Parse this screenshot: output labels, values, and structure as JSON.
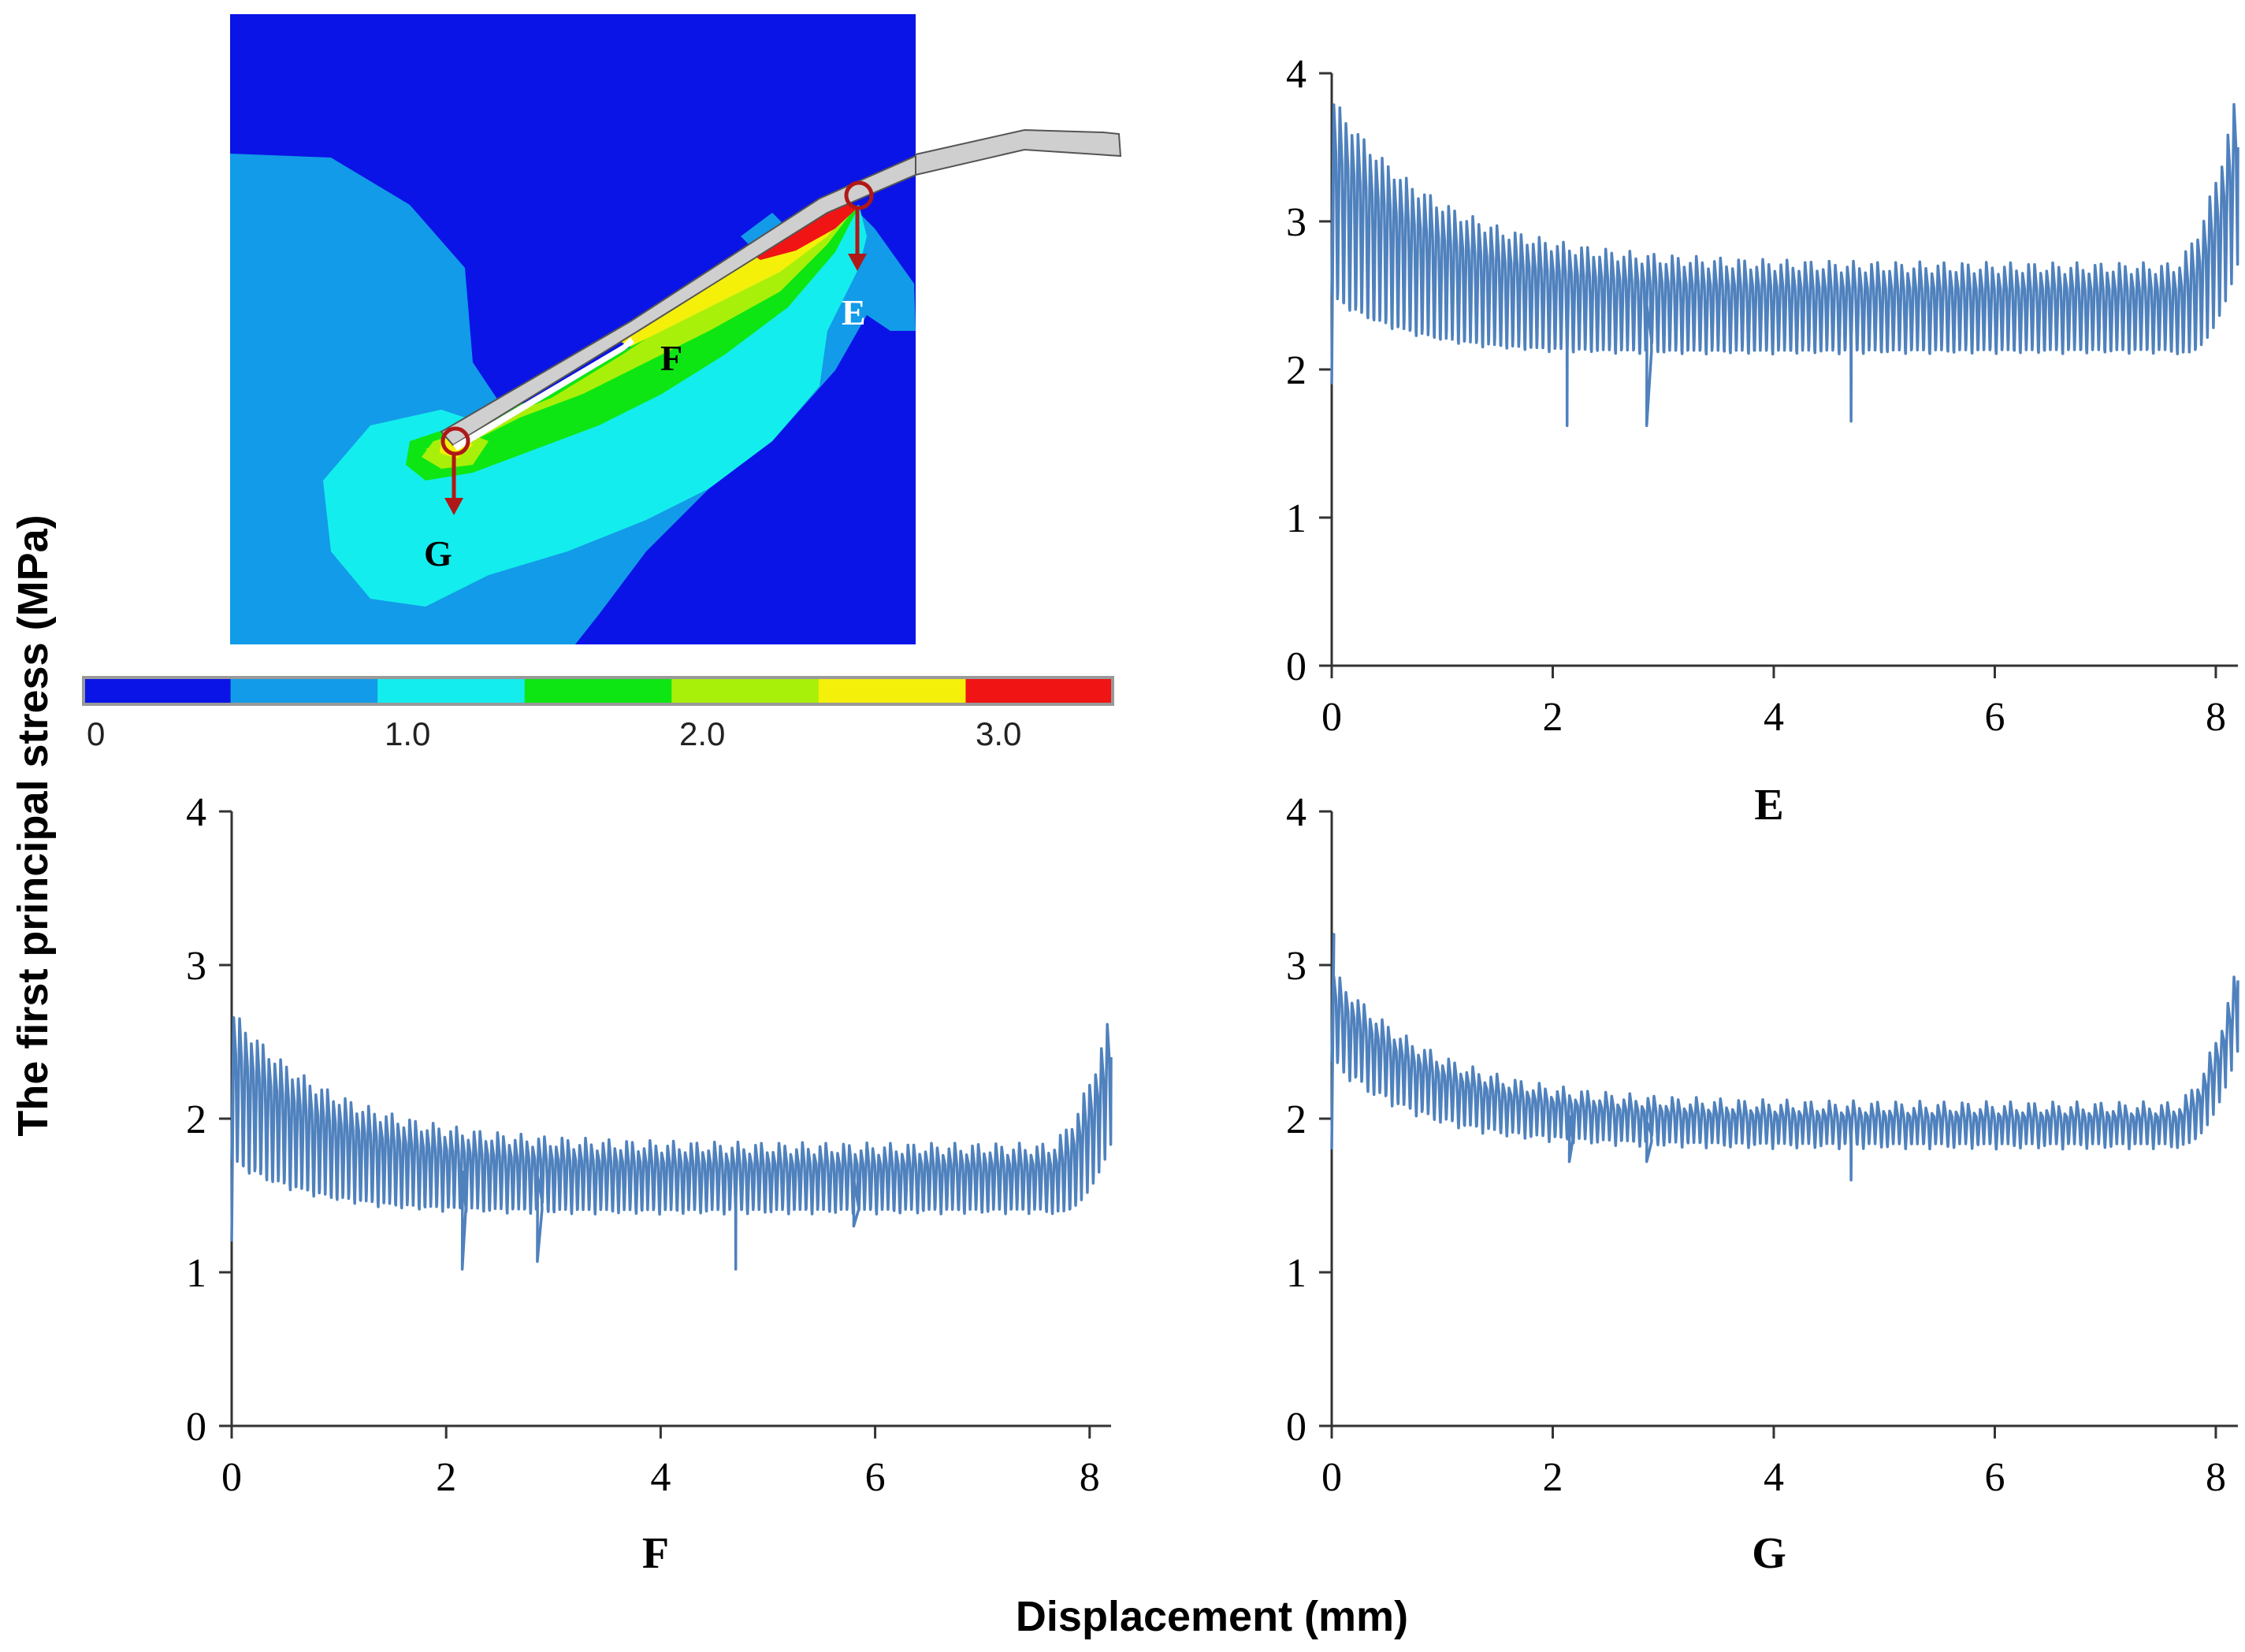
{
  "figure": {
    "ylabel": "The first principal stress (MPa)",
    "xlabel": "Displacement (mm)"
  },
  "contour": {
    "point_labels": [
      "E",
      "F",
      "G"
    ],
    "colorbar_ticks": [
      "0",
      "1.0",
      "2.0",
      "3.0"
    ],
    "colorbar_colors": [
      "#0a14e6",
      "#129be8",
      "#14eded",
      "#0ee614",
      "#a8f00a",
      "#f5f00a",
      "#f01414"
    ],
    "contour_colors": {
      "background": "#0a14e6",
      "level1": "#129be8",
      "level2": "#14eded",
      "level3": "#0ee614",
      "level4": "#a8f00a",
      "level5": "#f5f00a",
      "level6": "#f01414",
      "electrode": "#cfcfcf"
    },
    "marker_color": "#b01818"
  },
  "chart_data": [
    {
      "type": "line",
      "name": "E",
      "caption": "E",
      "xlabel": "Displacement (mm)",
      "ylabel": "The first principal stress (MPa)",
      "xlim": [
        0,
        8.2
      ],
      "ylim": [
        0,
        4
      ],
      "xticks": [
        "0",
        "2",
        "4",
        "6",
        "8"
      ],
      "yticks": [
        "0",
        "1",
        "2",
        "3",
        "4"
      ],
      "color": "#4f81bd",
      "start": 1.9,
      "peak_start": 3.7,
      "floor": 2.4,
      "floor_amp": 0.28,
      "end": 3.5,
      "cycles": 150,
      "decay": 0.9,
      "dips": [
        [
          2.13,
          1.62
        ],
        [
          2.85,
          1.62
        ],
        [
          4.7,
          1.65
        ]
      ]
    },
    {
      "type": "line",
      "name": "F",
      "caption": "F",
      "xlabel": "Displacement (mm)",
      "ylabel": "The first principal stress (MPa)",
      "xlim": [
        0,
        8.2
      ],
      "ylim": [
        0,
        4
      ],
      "xticks": [
        "0",
        "2",
        "4",
        "6",
        "8"
      ],
      "yticks": [
        "0",
        "1",
        "2",
        "3",
        "4"
      ],
      "color": "#4f81bd",
      "start": 1.2,
      "peak_start": 2.65,
      "floor": 1.6,
      "floor_amp": 0.2,
      "end": 2.4,
      "cycles": 150,
      "decay": 0.9,
      "dips": [
        [
          2.15,
          1.02
        ],
        [
          2.85,
          1.07
        ],
        [
          4.7,
          1.02
        ],
        [
          5.8,
          1.3
        ]
      ]
    },
    {
      "type": "line",
      "name": "G",
      "caption": "G",
      "xlabel": "Displacement (mm)",
      "ylabel": "The first principal stress (MPa)",
      "xlim": [
        0,
        8.2
      ],
      "ylim": [
        0,
        4
      ],
      "xticks": [
        "0",
        "2",
        "4",
        "6",
        "8"
      ],
      "yticks": [
        "0",
        "1",
        "2",
        "3",
        "4"
      ],
      "color": "#4f81bd",
      "start": 1.8,
      "peak_start": 3.2,
      "floor": 1.95,
      "floor_amp": 0.12,
      "end": 2.9,
      "cycles": 150,
      "decay": 0.9,
      "dips": [
        [
          2.15,
          1.72
        ],
        [
          2.85,
          1.72
        ],
        [
          4.7,
          1.6
        ]
      ]
    }
  ]
}
